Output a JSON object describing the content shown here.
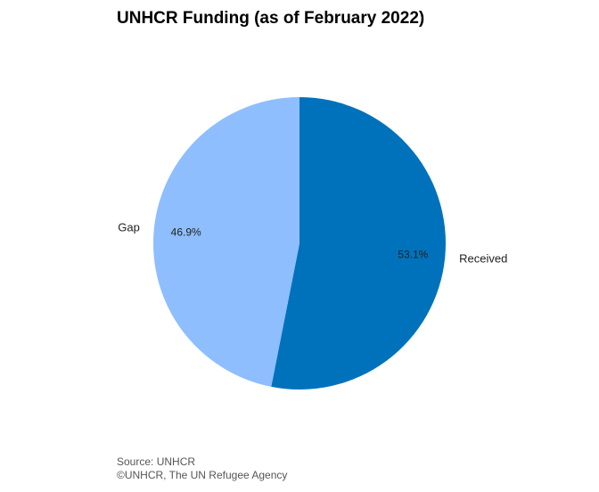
{
  "chart_data": {
    "type": "pie",
    "title": "UNHCR Funding (as of February 2022)",
    "slices": [
      {
        "label": "Received",
        "value": 53.1,
        "value_label": "53.1%",
        "color": "#0072bc"
      },
      {
        "label": "Gap",
        "value": 46.9,
        "value_label": "46.9%",
        "color": "#8ebefe"
      }
    ],
    "start_angle_deg": 0,
    "direction": "clockwise",
    "legend": "none"
  },
  "footer": {
    "source": "Source: UNHCR",
    "copyright": "©UNHCR, The UN Refugee Agency"
  }
}
